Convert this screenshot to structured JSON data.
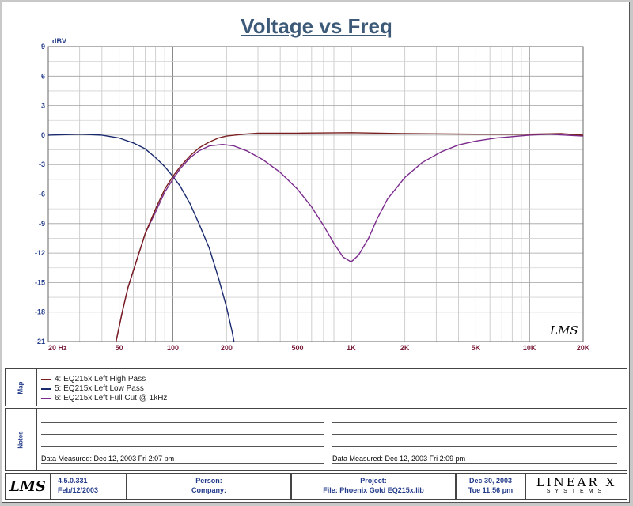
{
  "chart_data": {
    "type": "line",
    "title": "Voltage vs Freq",
    "ylabel": "dBV",
    "xlabel": "",
    "x_scale": "log",
    "xlim": [
      20,
      20000
    ],
    "ylim": [
      -21,
      9
    ],
    "yticks": [
      9,
      6,
      3,
      0,
      -3,
      -6,
      -9,
      -12,
      -15,
      -18,
      -21
    ],
    "xticks": [
      {
        "value": 20,
        "label": "20  Hz"
      },
      {
        "value": 50,
        "label": "50"
      },
      {
        "value": 100,
        "label": "100"
      },
      {
        "value": 200,
        "label": "200"
      },
      {
        "value": 500,
        "label": "500"
      },
      {
        "value": 1000,
        "label": "1K"
      },
      {
        "value": 2000,
        "label": "2K"
      },
      {
        "value": 5000,
        "label": "5K"
      },
      {
        "value": 10000,
        "label": "10K"
      },
      {
        "value": 20000,
        "label": "20K"
      }
    ],
    "grid": true,
    "series": [
      {
        "name": "4: EQ215x Left High Pass",
        "color": "#7a1f1f",
        "points": [
          [
            48,
            -21
          ],
          [
            52,
            -18
          ],
          [
            56,
            -15.5
          ],
          [
            62,
            -13
          ],
          [
            70,
            -10
          ],
          [
            80,
            -7.5
          ],
          [
            90,
            -5.5
          ],
          [
            100,
            -4.2
          ],
          [
            110,
            -3.2
          ],
          [
            125,
            -2.1
          ],
          [
            140,
            -1.3
          ],
          [
            160,
            -0.7
          ],
          [
            180,
            -0.3
          ],
          [
            200,
            -0.1
          ],
          [
            250,
            0.1
          ],
          [
            300,
            0.2
          ],
          [
            500,
            0.2
          ],
          [
            1000,
            0.25
          ],
          [
            2000,
            0.15
          ],
          [
            5000,
            0.1
          ],
          [
            10000,
            0.1
          ],
          [
            15000,
            0.15
          ],
          [
            20000,
            0
          ]
        ]
      },
      {
        "name": "5: EQ215x Left Low Pass",
        "color": "#1a2a6e",
        "points": [
          [
            20,
            0
          ],
          [
            25,
            0.05
          ],
          [
            30,
            0.1
          ],
          [
            40,
            0
          ],
          [
            50,
            -0.3
          ],
          [
            60,
            -0.8
          ],
          [
            70,
            -1.4
          ],
          [
            80,
            -2.3
          ],
          [
            90,
            -3.2
          ],
          [
            100,
            -4.2
          ],
          [
            110,
            -5.2
          ],
          [
            125,
            -7
          ],
          [
            140,
            -9
          ],
          [
            160,
            -11.5
          ],
          [
            180,
            -14.5
          ],
          [
            200,
            -17.5
          ],
          [
            215,
            -20
          ],
          [
            220,
            -21
          ]
        ]
      },
      {
        "name": "6: EQ215x Left Full Cut @ 1kHz",
        "color": "#7a2a8c",
        "points": [
          [
            48,
            -21
          ],
          [
            52,
            -18
          ],
          [
            56,
            -15.5
          ],
          [
            62,
            -13
          ],
          [
            70,
            -10
          ],
          [
            80,
            -7.8
          ],
          [
            90,
            -5.8
          ],
          [
            100,
            -4.5
          ],
          [
            110,
            -3.4
          ],
          [
            125,
            -2.3
          ],
          [
            140,
            -1.6
          ],
          [
            160,
            -1.1
          ],
          [
            190,
            -0.95
          ],
          [
            220,
            -1.1
          ],
          [
            260,
            -1.6
          ],
          [
            320,
            -2.5
          ],
          [
            400,
            -3.8
          ],
          [
            500,
            -5.5
          ],
          [
            600,
            -7.3
          ],
          [
            700,
            -9.2
          ],
          [
            800,
            -11
          ],
          [
            900,
            -12.4
          ],
          [
            1000,
            -12.9
          ],
          [
            1100,
            -12.2
          ],
          [
            1250,
            -10.5
          ],
          [
            1400,
            -8.5
          ],
          [
            1600,
            -6.5
          ],
          [
            2000,
            -4.3
          ],
          [
            2500,
            -2.8
          ],
          [
            3200,
            -1.7
          ],
          [
            4000,
            -1
          ],
          [
            5000,
            -0.6
          ],
          [
            6500,
            -0.3
          ],
          [
            8000,
            -0.15
          ],
          [
            10000,
            0
          ],
          [
            13000,
            0.1
          ],
          [
            16000,
            0
          ],
          [
            20000,
            -0.1
          ]
        ]
      }
    ]
  },
  "watermark": "LMS",
  "map_label": "Map",
  "notes_label": "Notes",
  "legend": [
    {
      "label": "4: EQ215x Left High Pass",
      "color": "#7a1f1f"
    },
    {
      "label": "5: EQ215x Left Low Pass",
      "color": "#1a2a6e"
    },
    {
      "label": "6: EQ215x Left Full Cut @ 1kHz",
      "color": "#7a2a8c"
    }
  ],
  "notes": {
    "left_measured": "Data Measured: Dec 12, 2003  Fri  2:07 pm",
    "right_measured": "Data Measured: Dec 12, 2003  Fri  2:09 pm"
  },
  "footer": {
    "logo": "LMS",
    "version": "4.5.0.331",
    "version_date": "Feb/12/2003",
    "person_label": "Person:",
    "company_label": "Company:",
    "project_label": "Project:",
    "file_label": "File: Phoenix Gold EQ215x.lib",
    "date": "Dec 30, 2003",
    "time": "Tue 11:56 pm",
    "brand_top": "LINEAR X",
    "brand_bottom": "SYSTEMS"
  }
}
